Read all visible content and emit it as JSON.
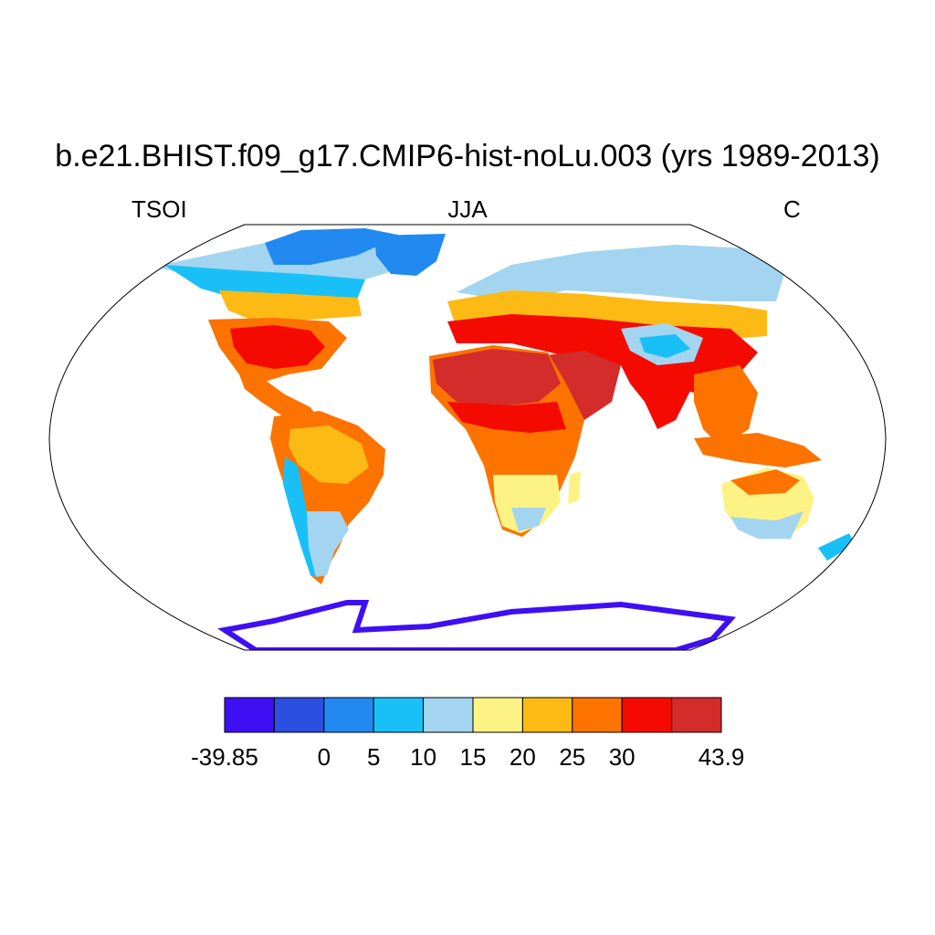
{
  "title": "b.e21.BHIST.f09_g17.CMIP6-hist-noLu.003 (yrs 1989-2013)",
  "labels": {
    "left": "TSOI",
    "center": "JJA",
    "right": "C"
  },
  "colorbar": {
    "colors": [
      "#3f0ff4",
      "#2b4fe0",
      "#2189f0",
      "#18c0f7",
      "#a3d5f0",
      "#fdf384",
      "#fdba14",
      "#fc7300",
      "#f50a00",
      "#d42b2b"
    ],
    "ticks": [
      "-39.85",
      "0",
      "5",
      "10",
      "15",
      "20",
      "25",
      "30",
      "43.9"
    ]
  },
  "chart_data": {
    "type": "heatmap",
    "variable": "TSOI",
    "season": "JJA",
    "units": "C",
    "range": [
      -39.85,
      43.9
    ],
    "levels": [
      0,
      5,
      10,
      15,
      20,
      25,
      30
    ],
    "legend": "bottom"
  }
}
